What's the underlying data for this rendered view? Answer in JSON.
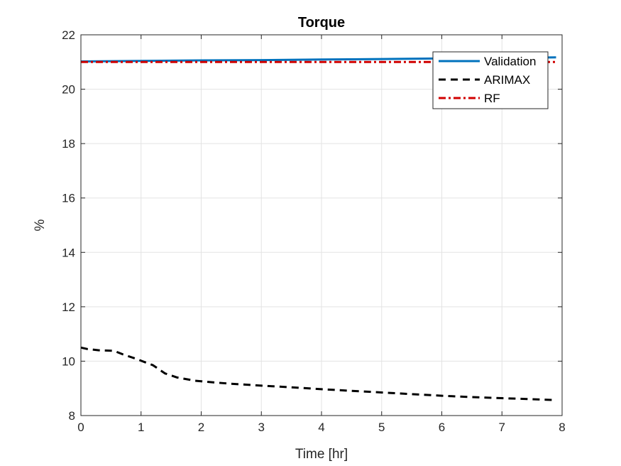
{
  "chart_data": {
    "type": "line",
    "title": "Torque",
    "xlabel": "Time [hr]",
    "ylabel": "%",
    "xlim": [
      0,
      8
    ],
    "ylim": [
      8,
      22
    ],
    "xticks": [
      0,
      1,
      2,
      3,
      4,
      5,
      6,
      7,
      8
    ],
    "yticks": [
      8,
      10,
      12,
      14,
      16,
      18,
      20,
      22
    ],
    "grid": true,
    "legend_position": "top-right",
    "series": [
      {
        "name": "Validation",
        "color": "#0072BD",
        "style": "solid",
        "x": [
          0,
          1,
          2,
          3,
          4,
          5,
          6,
          7,
          7.9
        ],
        "y": [
          21.02,
          21.04,
          21.06,
          21.07,
          21.09,
          21.11,
          21.13,
          21.15,
          21.17
        ]
      },
      {
        "name": "ARIMAX",
        "color": "#000000",
        "style": "dashed",
        "x": [
          0,
          0.1,
          0.3,
          0.55,
          0.7,
          0.9,
          1.2,
          1.4,
          1.6,
          1.9,
          2.2,
          2.5,
          3.0,
          3.5,
          4.0,
          4.5,
          5.0,
          5.5,
          6.0,
          6.5,
          7.0,
          7.5,
          7.9
        ],
        "y": [
          10.5,
          10.45,
          10.4,
          10.38,
          10.25,
          10.1,
          9.85,
          9.55,
          9.4,
          9.28,
          9.22,
          9.17,
          9.1,
          9.04,
          8.97,
          8.91,
          8.85,
          8.79,
          8.73,
          8.68,
          8.64,
          8.6,
          8.57
        ]
      },
      {
        "name": "RF",
        "color": "#D00000",
        "style": "dashdot",
        "x": [
          0,
          7.9
        ],
        "y": [
          21.0,
          21.0
        ]
      }
    ]
  }
}
